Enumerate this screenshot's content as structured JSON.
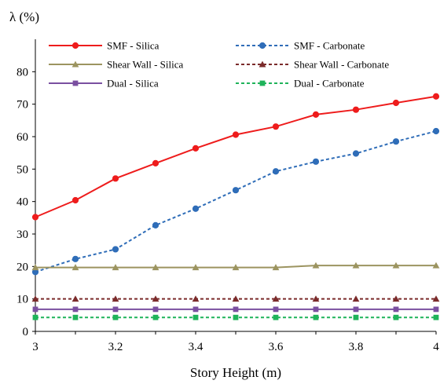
{
  "chart_data": {
    "type": "line",
    "title": "",
    "ylabel": "λ (%)",
    "xlabel": "Story Height (m)",
    "xlim": [
      3,
      4
    ],
    "ylim": [
      0,
      90
    ],
    "x_ticks": [
      "3",
      "3.2",
      "3.4",
      "3.6",
      "3.8",
      "4"
    ],
    "y_ticks": [
      "0",
      "10",
      "20",
      "30",
      "40",
      "50",
      "60",
      "70",
      "80"
    ],
    "grid": false,
    "legend_position": "top",
    "x": [
      3.0,
      3.1,
      3.2,
      3.3,
      3.4,
      3.5,
      3.6,
      3.7,
      3.8,
      3.9,
      4.0
    ],
    "series": [
      {
        "name": "SMF - Silica",
        "color": "#ee1c1c",
        "dash": "solid",
        "marker": "circle",
        "values": [
          35.2,
          40.4,
          47.1,
          51.8,
          56.4,
          60.6,
          63.1,
          66.8,
          68.3,
          70.4,
          72.4
        ]
      },
      {
        "name": "SMF - Carbonate",
        "color": "#2f6db8",
        "dash": "dashed",
        "marker": "circle",
        "values": [
          18.3,
          22.3,
          25.3,
          32.7,
          37.8,
          43.5,
          49.3,
          52.3,
          54.8,
          58.5,
          61.7
        ]
      },
      {
        "name": "Shear Wall - Silica",
        "color": "#9c9460",
        "dash": "solid",
        "marker": "triangle",
        "values": [
          19.7,
          19.7,
          19.7,
          19.7,
          19.7,
          19.7,
          19.7,
          20.3,
          20.3,
          20.3,
          20.3
        ]
      },
      {
        "name": "Shear Wall - Carbonate",
        "color": "#7b2b2b",
        "dash": "dashed",
        "marker": "triangle",
        "values": [
          10.0,
          10.0,
          10.0,
          10.0,
          10.0,
          10.0,
          10.0,
          10.0,
          10.0,
          10.0,
          10.0
        ]
      },
      {
        "name": "Dual - Silica",
        "color": "#7a4fa0",
        "dash": "solid",
        "marker": "square",
        "values": [
          6.8,
          6.8,
          6.8,
          6.8,
          6.8,
          6.8,
          6.8,
          6.8,
          6.8,
          6.8,
          6.8
        ]
      },
      {
        "name": "Dual - Carbonate",
        "color": "#1fb35a",
        "dash": "dashed",
        "marker": "square",
        "values": [
          4.3,
          4.3,
          4.3,
          4.3,
          4.3,
          4.3,
          4.3,
          4.3,
          4.3,
          4.3,
          4.3
        ]
      }
    ]
  }
}
